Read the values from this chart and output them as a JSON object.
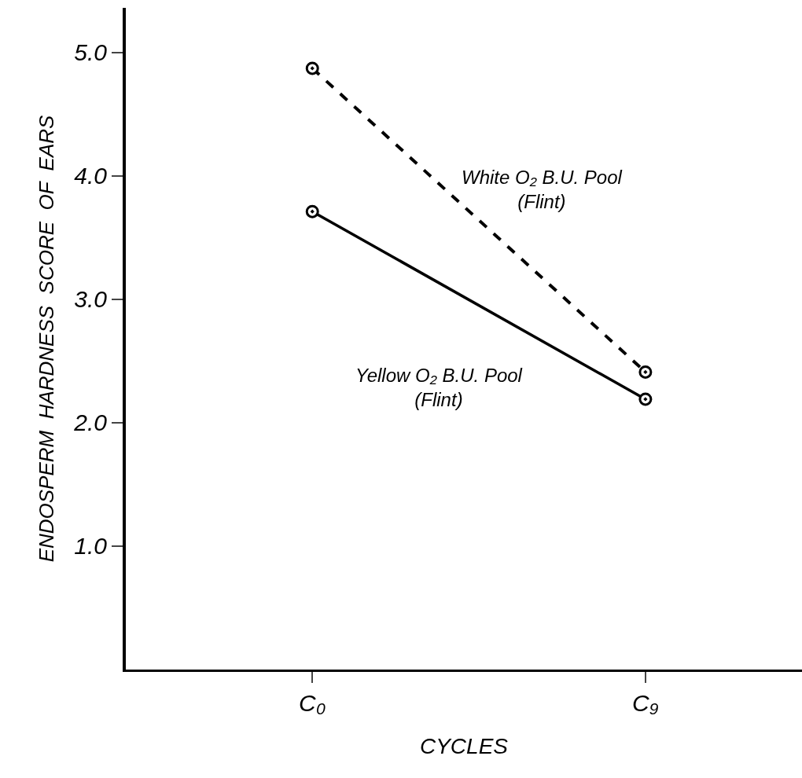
{
  "chart_data": {
    "type": "line",
    "xlabel": "CYCLES",
    "ylabel": "ENDOSPERM  HARDNESS  SCORE  OF  EARS",
    "categories": [
      "C₀",
      "C₉"
    ],
    "series": [
      {
        "name": "White O₂ B.U. Pool\n(Flint)",
        "color": "#000000",
        "values": [
          4.87,
          2.41
        ],
        "line_style": "dashed"
      },
      {
        "name": "Yellow O₂ B.U. Pool\n(Flint)",
        "color": "#000000",
        "values": [
          3.71,
          2.19
        ],
        "line_style": "solid"
      }
    ],
    "ylim": [
      0,
      5.36
    ],
    "yticks": [
      {
        "value": 1,
        "label": "1.0"
      },
      {
        "value": 2,
        "label": "2.0"
      },
      {
        "value": 3,
        "label": "3.0"
      },
      {
        "value": 4,
        "label": "4.0"
      },
      {
        "value": 5,
        "label": "5.0"
      }
    ],
    "marker": "circle",
    "legend": false
  }
}
